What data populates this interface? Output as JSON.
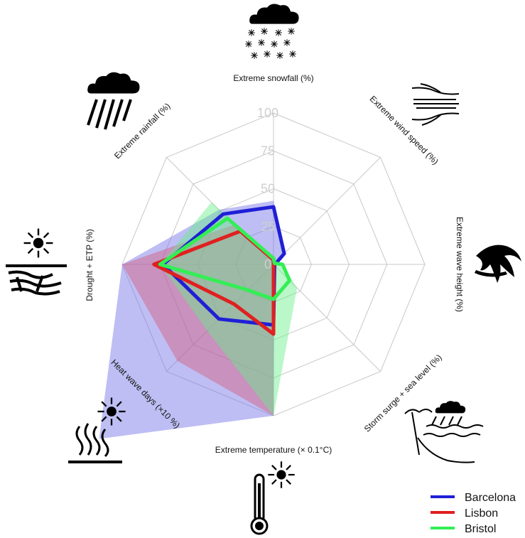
{
  "chart_data": {
    "type": "radar",
    "axes": [
      "Extreme snowfall (%)",
      "Extreme wind speed (%)",
      "Extreme wave height (%)",
      "Storm surge + sea level (%)",
      "Extreme temperature (× 0.1°C)",
      "Heat wave days (×10 %)",
      "Drought + ETP (%)",
      "Extreme rainfall (%)"
    ],
    "axis_icons": [
      "snow-cloud-icon",
      "wind-icon",
      "wave-icon",
      "storm-coast-icon",
      "thermometer-sun-icon",
      "heat-wave-icon",
      "drought-sun-icon",
      "rain-cloud-icon"
    ],
    "ticks": [
      0,
      25,
      50,
      75,
      100
    ],
    "tick_labels": [
      "0",
      "25",
      "50",
      "75",
      "100"
    ],
    "rlim": [
      0,
      100
    ],
    "series": [
      {
        "name": "Barcelona",
        "color": "#1f1fd6",
        "fill": "#6f6fe6",
        "line_values": [
          38,
          10,
          1,
          1,
          40,
          51,
          73,
          47
        ],
        "fill_values": [
          42,
          10,
          1,
          1,
          100,
          163,
          100,
          51
        ]
      },
      {
        "name": "Lisbon",
        "color": "#e02020",
        "fill": "#d85a7a",
        "line_values": [
          3,
          0,
          0,
          0,
          46,
          37,
          79,
          31
        ],
        "fill_values": [
          3,
          0,
          0,
          0,
          100,
          90,
          100,
          37
        ]
      },
      {
        "name": "Bristol",
        "color": "#33ee55",
        "fill": "#66ee88",
        "line_values": [
          4,
          1,
          6,
          15,
          23,
          24,
          75,
          43
        ],
        "fill_values": [
          4,
          1,
          6,
          22,
          100,
          62,
          75,
          58
        ]
      }
    ],
    "legend": {
      "position": "bottom-right",
      "entries": [
        "Barcelona",
        "Lisbon",
        "Bristol"
      ]
    },
    "grid": true
  }
}
